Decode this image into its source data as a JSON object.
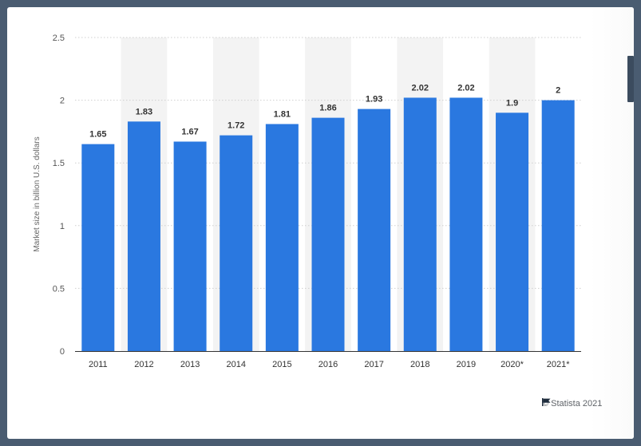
{
  "chart_data": {
    "type": "bar",
    "categories": [
      "2011",
      "2012",
      "2013",
      "2014",
      "2015",
      "2016",
      "2017",
      "2018",
      "2019",
      "2020*",
      "2021*"
    ],
    "values": [
      1.65,
      1.83,
      1.67,
      1.72,
      1.81,
      1.86,
      1.93,
      2.02,
      2.02,
      1.9,
      2
    ],
    "value_labels": [
      "1.65",
      "1.83",
      "1.67",
      "1.72",
      "1.81",
      "1.86",
      "1.93",
      "2.02",
      "2.02",
      "1.9",
      "2"
    ],
    "ylabel": "Market size in billion U.S. dollars",
    "ylim": [
      0,
      2.5
    ],
    "yticks": [
      "0",
      "0.5",
      "1",
      "1.5",
      "2",
      "2.5"
    ],
    "grid": true,
    "colors": {
      "bar": "#2a78e0",
      "band": "#f3f3f3",
      "grid": "#cfcfcf",
      "axis": "#333333"
    }
  },
  "footer": {
    "credit": "© Statista 2021",
    "flag_icon": "flag-icon"
  }
}
